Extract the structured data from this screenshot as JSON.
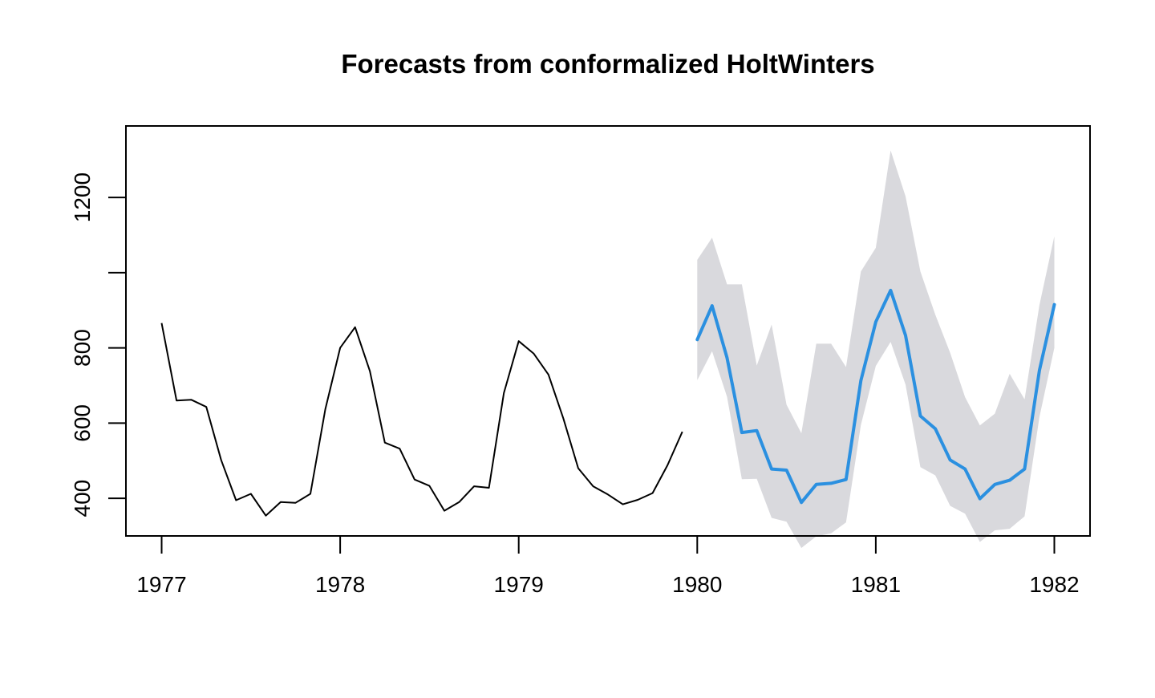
{
  "chart_data": {
    "type": "line",
    "title": "Forecasts from conformalized HoltWinters",
    "xlabel": "",
    "ylabel": "",
    "xlim": [
      1976.8,
      1982.2
    ],
    "ylim": [
      300,
      1390
    ],
    "x_ticks": [
      1977,
      1978,
      1979,
      1980,
      1981,
      1982
    ],
    "x_tick_labels": [
      "1977",
      "1978",
      "1979",
      "1980",
      "1981",
      "1982"
    ],
    "y_ticks": [
      400,
      600,
      800,
      1000,
      1200
    ],
    "y_tick_labels": [
      "400",
      "600",
      "800",
      "",
      "1200"
    ],
    "grid": false,
    "legend": "none",
    "colors": {
      "observed": "#000000",
      "forecast": "#2b90e0",
      "interval": "#d9d9dd",
      "axis": "#000000"
    },
    "observed": {
      "start": 1977,
      "frequency": 12,
      "values": [
        866,
        660,
        662,
        643,
        502,
        395,
        412,
        354,
        390,
        388,
        412,
        637,
        800,
        855,
        738,
        548,
        532,
        450,
        433,
        367,
        390,
        432,
        428,
        680,
        818,
        785,
        729,
        612,
        480,
        432,
        410,
        384,
        396,
        414,
        488,
        577
      ]
    },
    "forecast": {
      "start": 1980,
      "frequency": 12,
      "mean": [
        822,
        912,
        774,
        575,
        580,
        478,
        475,
        389,
        437,
        440,
        450,
        713,
        869,
        953,
        833,
        619,
        585,
        502,
        478,
        399,
        437,
        448,
        478,
        740,
        915
      ],
      "lower": [
        714,
        791,
        670,
        451,
        452,
        348,
        338,
        268,
        299,
        307,
        336,
        595,
        752,
        816,
        702,
        483,
        461,
        380,
        359,
        284,
        315,
        319,
        352,
        616,
        800
      ],
      "upper": [
        1034,
        1093,
        969,
        969,
        753,
        862,
        649,
        573,
        811,
        811,
        749,
        1003,
        1066,
        1325,
        1203,
        1003,
        888,
        787,
        669,
        594,
        625,
        731,
        663,
        914,
        1097
      ]
    }
  }
}
